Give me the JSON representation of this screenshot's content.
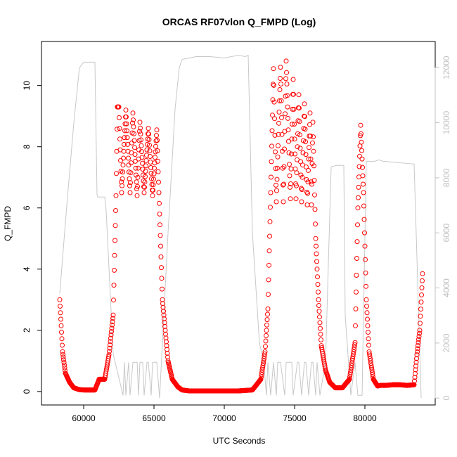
{
  "chart_data": {
    "type": "scatter",
    "title": "ORCAS RF07vlon Q_FMPD (Log)",
    "xlabel": "UTC Seconds",
    "ylabel": "Q_FMPD",
    "xlim": [
      57000,
      85000
    ],
    "ylim": [
      -0.44,
      11.44
    ],
    "y2lim": [
      -250,
      12950
    ],
    "xticks": [
      60000,
      65000,
      70000,
      75000,
      80000
    ],
    "yticks": [
      0,
      2,
      4,
      6,
      8,
      10
    ],
    "y2ticks": [
      0,
      2000,
      4000,
      6000,
      8000,
      10000,
      12000
    ],
    "grid": false,
    "colors": {
      "points": "#ff0000",
      "altitude_line": "#c8c8c8",
      "right_axis": "#c0c0c0",
      "frame": "#000000"
    },
    "series": [
      {
        "kind": "points",
        "x": [
          58300,
          58500,
          58700,
          59000,
          59300,
          59700,
          60000,
          60400,
          60800,
          61100,
          61500,
          61800,
          62100,
          62300,
          62400,
          62500,
          62700,
          63000,
          63300,
          63500,
          63800,
          64000,
          64300,
          64600,
          64900,
          65200,
          65350,
          65600,
          66000,
          66300,
          66700,
          67000,
          67500,
          68000,
          69000,
          70000,
          71000,
          72000,
          72600,
          72900,
          73100,
          73300,
          73500,
          73700,
          74000,
          74200,
          74400,
          74700,
          74900,
          75100,
          75300,
          75500,
          75700,
          75900,
          76100,
          76200,
          76300,
          76500,
          76700,
          76900,
          77200,
          77500,
          77900,
          78400,
          78900,
          79300,
          79500,
          79700,
          79900,
          80100,
          80300,
          80600,
          80900,
          81100,
          81500,
          82000,
          82500,
          83000,
          83500,
          83700,
          83900,
          84100
        ],
        "y": [
          3.0,
          1.3,
          0.6,
          0.3,
          0.12,
          0.06,
          0.05,
          0.05,
          0.05,
          0.4,
          0.4,
          1.2,
          2.5,
          6.4,
          9.3,
          9.3,
          6.5,
          9.2,
          6.5,
          9.1,
          6.4,
          8.8,
          6.5,
          8.6,
          6.4,
          8.55,
          6.5,
          3.0,
          1.0,
          0.4,
          0.15,
          0.05,
          0.02,
          0.02,
          0.02,
          0.02,
          0.02,
          0.05,
          0.4,
          1.3,
          2.7,
          6.5,
          10.55,
          6.2,
          10.6,
          6.2,
          10.8,
          6.3,
          10.2,
          6.3,
          9.7,
          6.2,
          9.4,
          6.1,
          9.1,
          6.1,
          8.8,
          5.0,
          3.0,
          1.5,
          0.7,
          0.3,
          0.12,
          0.12,
          0.4,
          1.6,
          6.0,
          8.7,
          6.5,
          3.0,
          1.3,
          0.4,
          0.18,
          0.2,
          0.2,
          0.22,
          0.22,
          0.2,
          0.22,
          1.2,
          2.0,
          3.85
        ]
      },
      {
        "kind": "line",
        "x": [
          58300,
          58800,
          59300,
          59700,
          60000,
          60400,
          60800,
          60950,
          61000,
          61500,
          61600,
          62100,
          62800,
          62900,
          63000,
          63200,
          63300,
          63500,
          63800,
          63900,
          64000,
          64200,
          64300,
          64500,
          64600,
          64800,
          64900,
          65200,
          65400,
          65600,
          66000,
          66500,
          66800,
          67000,
          67500,
          68000,
          69000,
          70000,
          71000,
          71500,
          71700,
          72000,
          72500,
          72800,
          73000,
          73100,
          73300,
          73500,
          73700,
          73800,
          74000,
          74300,
          74400,
          74800,
          74900,
          75200,
          75300,
          75500,
          75700,
          75800,
          76000,
          76200,
          76300,
          76500,
          76600,
          76800,
          77200,
          77600,
          78000,
          78500,
          78600,
          79000,
          79300,
          79500,
          79800,
          80100,
          80500,
          80700,
          81000,
          81300,
          83500,
          84000
        ],
        "y": [
          3800,
          7000,
          10000,
          12000,
          12200,
          12200,
          12200,
          7400,
          7300,
          7300,
          6800,
          1600,
          100,
          1300,
          100,
          1300,
          100,
          1300,
          1300,
          100,
          1300,
          1300,
          100,
          1300,
          1300,
          100,
          1300,
          1300,
          0,
          2000,
          6000,
          10500,
          12000,
          12300,
          12350,
          12400,
          12400,
          12350,
          12450,
          12400,
          12450,
          6000,
          2000,
          1300,
          100,
          1300,
          100,
          1300,
          100,
          1300,
          1300,
          100,
          1300,
          1300,
          100,
          1300,
          1300,
          100,
          1300,
          1300,
          100,
          1300,
          1300,
          100,
          1300,
          100,
          1300,
          8400,
          8450,
          8450,
          3000,
          100,
          1300,
          100,
          100,
          8600,
          8600,
          8600,
          8650,
          8600,
          8500,
          0
        ]
      }
    ]
  }
}
